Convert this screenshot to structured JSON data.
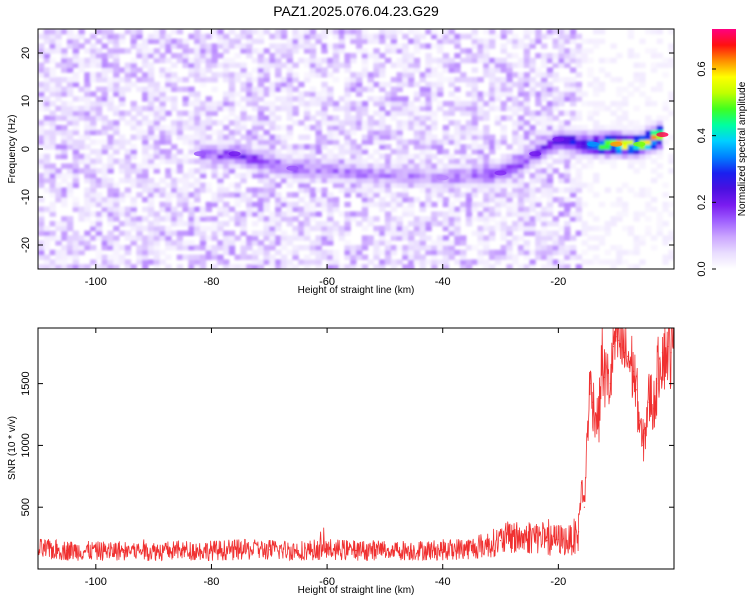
{
  "title": "PAZ1.2025.076.04.23.G29",
  "chart_data": [
    {
      "type": "heatmap",
      "title": "PAZ1.2025.076.04.23.G29",
      "xlabel": "Height of straight line (km)",
      "ylabel": "Frequency (Hz)",
      "xlim": [
        -110,
        0
      ],
      "ylim": [
        -25,
        25
      ],
      "x_ticks": [
        -100,
        -80,
        -60,
        -40,
        -20
      ],
      "y_ticks": [
        -20,
        -10,
        0,
        10,
        20
      ],
      "colorbar": {
        "label": "Normalized spectral amplitude",
        "range": [
          0,
          0.72
        ],
        "ticks": [
          0.0,
          0.2,
          0.4,
          0.6
        ],
        "colormap": [
          "#ffffff",
          "#e9ddff",
          "#cba6ff",
          "#a060ff",
          "#7a1cf0",
          "#4a10e0",
          "#1a20f0",
          "#0080ff",
          "#00d0ff",
          "#00ffa0",
          "#40ff20",
          "#c0ff00",
          "#ffff00",
          "#ff9000",
          "#ff1010",
          "#ff0080"
        ]
      },
      "signal_ridge": [
        {
          "x": -82,
          "freq": -1,
          "amplitude": 0.15
        },
        {
          "x": -76,
          "freq": -1,
          "amplitude": 0.2
        },
        {
          "x": -66,
          "freq": -4,
          "amplitude": 0.15
        },
        {
          "x": -40,
          "freq": -6,
          "amplitude": 0.12
        },
        {
          "x": -30,
          "freq": -5,
          "amplitude": 0.18
        },
        {
          "x": -24,
          "freq": -1,
          "amplitude": 0.2
        },
        {
          "x": -20,
          "freq": 2,
          "amplitude": 0.2
        },
        {
          "x": -14,
          "freq": 1,
          "amplitude": 0.35
        },
        {
          "x": -10,
          "freq": 1,
          "amplitude": 0.62
        },
        {
          "x": -6,
          "freq": 1,
          "amplitude": 0.5
        },
        {
          "x": -2,
          "freq": 3,
          "amplitude": 0.7
        }
      ]
    },
    {
      "type": "line",
      "xlabel": "Height of straight line (km)",
      "ylabel": "SNR (10 * v/v)",
      "xlim": [
        -110,
        0
      ],
      "ylim": [
        0,
        1950
      ],
      "x_ticks": [
        -100,
        -80,
        -60,
        -40,
        -20
      ],
      "y_ticks": [
        500,
        1000,
        1500
      ],
      "color": "#f03030",
      "series": [
        {
          "x": [
            -110,
            -105,
            -100,
            -95,
            -90,
            -85,
            -80,
            -75,
            -70,
            -65,
            -60,
            -55,
            -50,
            -45,
            -40,
            -35,
            -32,
            -30,
            -28,
            -26,
            -24,
            -22,
            -20,
            -18,
            -16.5,
            -16,
            -15.5,
            -15,
            -14.5,
            -14,
            -13.5,
            -13,
            -12.5,
            -12,
            -11,
            -10.5,
            -10,
            -9.5,
            -9,
            -8.5,
            -8,
            -7,
            -6.5,
            -6,
            -5.5,
            -5,
            -4.5,
            -4,
            -3.5,
            -3,
            -2.5,
            -2,
            -1.5,
            -1,
            -0.5,
            0
          ],
          "y": [
            160,
            150,
            145,
            150,
            145,
            150,
            150,
            155,
            155,
            150,
            160,
            150,
            155,
            150,
            155,
            170,
            200,
            230,
            260,
            250,
            270,
            230,
            240,
            230,
            300,
            700,
            500,
            1100,
            1500,
            1350,
            1250,
            1200,
            1700,
            1550,
            1500,
            1800,
            1880,
            1850,
            1790,
            1750,
            1720,
            1600,
            1450,
            1200,
            1000,
            1100,
            1350,
            1400,
            1300,
            1500,
            1700,
            1750,
            1750,
            1800,
            1750,
            1800
          ]
        }
      ]
    }
  ]
}
